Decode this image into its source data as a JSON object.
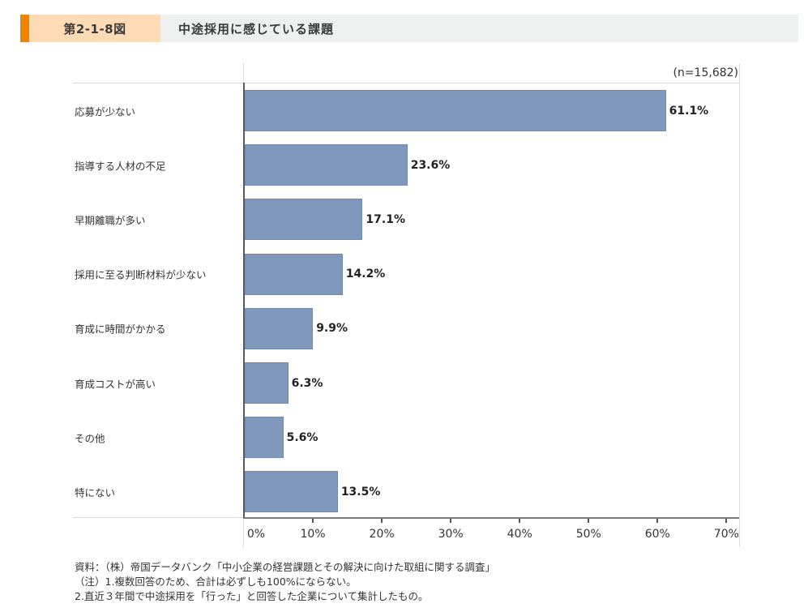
{
  "header": {
    "figure_number": "第2-1-8図",
    "title": "中途採用に感じている課題",
    "accent_color": "#f08300",
    "number_bg": "#fddcb5",
    "title_bg": "#eeefef"
  },
  "chart_data": {
    "type": "bar",
    "orientation": "horizontal",
    "title": "中途採用に感じている課題",
    "sample_size": "(n=15,682)",
    "categories": [
      "応募が少ない",
      "指導する人材の不足",
      "早期離職が多い",
      "採用に至る判断材料が少ない",
      "育成に時間がかかる",
      "育成コストが高い",
      "その他",
      "特にない"
    ],
    "values": [
      61.1,
      23.6,
      17.1,
      14.2,
      9.9,
      6.3,
      5.6,
      13.5
    ],
    "value_labels": [
      "61.1%",
      "23.6%",
      "17.1%",
      "14.2%",
      "9.9%",
      "6.3%",
      "5.6%",
      "13.5%"
    ],
    "xlabel": "",
    "ylabel": "",
    "xlim": [
      0,
      70
    ],
    "x_ticks": [
      "0%",
      "10%",
      "20%",
      "30%",
      "40%",
      "50%",
      "60%",
      "70%"
    ],
    "bar_color": "#8198bd",
    "grid": false,
    "legend": "none"
  },
  "notes": {
    "source": "資料：（株）帝国データバンク「中小企業の経営課題とその解決に向けた取組に関する調査」",
    "note1": "（注）1.複数回答のため、合計は必ずしも100%にならない。",
    "note2": "2.直近３年間で中途採用を「行った」と回答した企業について集計したもの。"
  }
}
